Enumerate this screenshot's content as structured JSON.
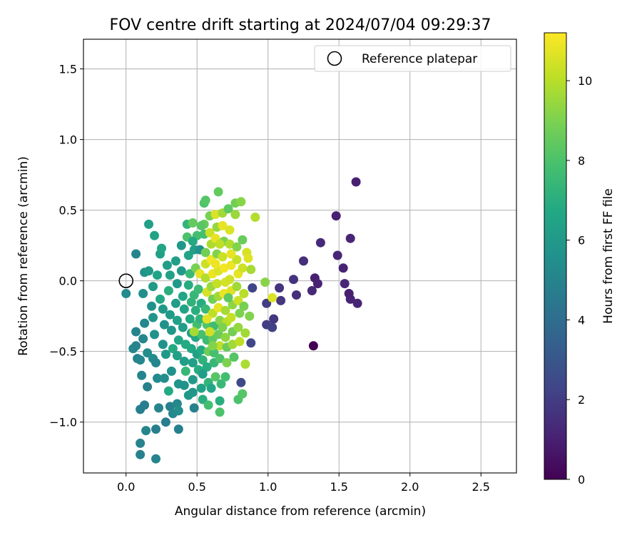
{
  "chart_data": {
    "type": "scatter",
    "title": "FOV centre drift starting at 2024/07/04 09:29:37",
    "xlabel": "Angular distance from reference (arcmin)",
    "ylabel": "Rotation from reference (arcmin)",
    "xlim": [
      -0.3,
      2.75
    ],
    "ylim": [
      -1.36,
      1.71
    ],
    "xticks": [
      0.0,
      0.5,
      1.0,
      1.5,
      2.0,
      2.5
    ],
    "xtick_labels": [
      "0.0",
      "0.5",
      "1.0",
      "1.5",
      "2.0",
      "2.5"
    ],
    "yticks": [
      -1.0,
      -0.5,
      0.0,
      0.5,
      1.0,
      1.5
    ],
    "ytick_labels": [
      "−1.0",
      "−0.5",
      "0.0",
      "0.5",
      "1.0",
      "1.5"
    ],
    "grid": true,
    "legend": {
      "position": "top-right",
      "entries": [
        "Reference platepar"
      ]
    },
    "reference_point": {
      "x": 0.0,
      "y": 0.0
    },
    "colorbar": {
      "label": "Hours from first FF file",
      "colormap": "viridis",
      "min": 0,
      "max": 11.2,
      "ticks": [
        0,
        2,
        4,
        6,
        8,
        10
      ],
      "tick_labels": [
        "0",
        "2",
        "4",
        "6",
        "8",
        "10"
      ]
    },
    "points": [
      {
        "x": 1.62,
        "y": 0.7,
        "t": 1.0
      },
      {
        "x": 1.48,
        "y": 0.46,
        "t": 1.0
      },
      {
        "x": 1.58,
        "y": 0.3,
        "t": 1.2
      },
      {
        "x": 1.37,
        "y": 0.27,
        "t": 1.3
      },
      {
        "x": 1.49,
        "y": 0.18,
        "t": 1.2
      },
      {
        "x": 1.25,
        "y": 0.14,
        "t": 1.5
      },
      {
        "x": 1.53,
        "y": 0.09,
        "t": 1.1
      },
      {
        "x": 1.33,
        "y": 0.02,
        "t": 1.0
      },
      {
        "x": 1.18,
        "y": 0.01,
        "t": 1.6
      },
      {
        "x": 1.35,
        "y": -0.02,
        "t": 1.1
      },
      {
        "x": 1.54,
        "y": -0.02,
        "t": 1.2
      },
      {
        "x": 1.08,
        "y": -0.05,
        "t": 1.7
      },
      {
        "x": 1.31,
        "y": -0.07,
        "t": 1.3
      },
      {
        "x": 1.57,
        "y": -0.09,
        "t": 1.0
      },
      {
        "x": 1.2,
        "y": -0.1,
        "t": 1.5
      },
      {
        "x": 1.58,
        "y": -0.13,
        "t": 1.1
      },
      {
        "x": 1.09,
        "y": -0.14,
        "t": 1.8
      },
      {
        "x": 1.63,
        "y": -0.16,
        "t": 1.2
      },
      {
        "x": 0.99,
        "y": -0.16,
        "t": 2.0
      },
      {
        "x": 1.04,
        "y": -0.27,
        "t": 1.8
      },
      {
        "x": 0.99,
        "y": -0.31,
        "t": 2.0
      },
      {
        "x": 1.03,
        "y": -0.33,
        "t": 2.1
      },
      {
        "x": 0.89,
        "y": -0.05,
        "t": 2.3
      },
      {
        "x": 0.88,
        "y": -0.44,
        "t": 2.4
      },
      {
        "x": 0.81,
        "y": -0.72,
        "t": 2.5
      },
      {
        "x": 1.32,
        "y": -0.46,
        "t": 0.0
      },
      {
        "x": 1.03,
        "y": -0.12,
        "t": 10.6
      },
      {
        "x": 0.07,
        "y": 0.19,
        "t": 5.0
      },
      {
        "x": 0.0,
        "y": -0.09,
        "t": 5.3
      },
      {
        "x": 0.05,
        "y": -0.48,
        "t": 5.2
      },
      {
        "x": 0.07,
        "y": -0.36,
        "t": 5.0
      },
      {
        "x": 0.07,
        "y": -0.46,
        "t": 5.0
      },
      {
        "x": 0.08,
        "y": -0.55,
        "t": 4.9
      },
      {
        "x": 0.1,
        "y": -0.56,
        "t": 5.1
      },
      {
        "x": 0.11,
        "y": -0.67,
        "t": 5.0
      },
      {
        "x": 0.1,
        "y": -0.91,
        "t": 4.8
      },
      {
        "x": 0.13,
        "y": -0.88,
        "t": 4.7
      },
      {
        "x": 0.1,
        "y": -1.15,
        "t": 5.0
      },
      {
        "x": 0.1,
        "y": -1.23,
        "t": 4.9
      },
      {
        "x": 0.14,
        "y": -1.06,
        "t": 5.0
      },
      {
        "x": 0.21,
        "y": -1.05,
        "t": 4.8
      },
      {
        "x": 0.21,
        "y": -1.26,
        "t": 5.0
      },
      {
        "x": 0.28,
        "y": -1.0,
        "t": 4.7
      },
      {
        "x": 0.37,
        "y": -1.05,
        "t": 4.8
      },
      {
        "x": 0.16,
        "y": 0.4,
        "t": 6.3
      },
      {
        "x": 0.2,
        "y": 0.32,
        "t": 6.5
      },
      {
        "x": 0.12,
        "y": -0.09,
        "t": 5.5
      },
      {
        "x": 0.13,
        "y": -0.3,
        "t": 5.2
      },
      {
        "x": 0.12,
        "y": -0.41,
        "t": 5.1
      },
      {
        "x": 0.15,
        "y": -0.51,
        "t": 5.4
      },
      {
        "x": 0.15,
        "y": -0.75,
        "t": 4.9
      },
      {
        "x": 0.13,
        "y": 0.06,
        "t": 5.7
      },
      {
        "x": 0.16,
        "y": 0.07,
        "t": 6.0
      },
      {
        "x": 0.19,
        "y": -0.04,
        "t": 6.1
      },
      {
        "x": 0.18,
        "y": -0.18,
        "t": 5.6
      },
      {
        "x": 0.19,
        "y": -0.26,
        "t": 5.8
      },
      {
        "x": 0.2,
        "y": -0.38,
        "t": 5.6
      },
      {
        "x": 0.19,
        "y": -0.55,
        "t": 5.3
      },
      {
        "x": 0.21,
        "y": -0.58,
        "t": 5.1
      },
      {
        "x": 0.22,
        "y": -0.69,
        "t": 5.3
      },
      {
        "x": 0.23,
        "y": -0.9,
        "t": 5.0
      },
      {
        "x": 0.24,
        "y": 0.19,
        "t": 6.3
      },
      {
        "x": 0.25,
        "y": 0.23,
        "t": 6.6
      },
      {
        "x": 0.22,
        "y": 0.04,
        "t": 6.5
      },
      {
        "x": 0.24,
        "y": -0.13,
        "t": 6.7
      },
      {
        "x": 0.26,
        "y": -0.2,
        "t": 6.0
      },
      {
        "x": 0.27,
        "y": -0.31,
        "t": 5.7
      },
      {
        "x": 0.26,
        "y": -0.45,
        "t": 5.6
      },
      {
        "x": 0.28,
        "y": -0.52,
        "t": 6.0
      },
      {
        "x": 0.27,
        "y": -0.69,
        "t": 5.5
      },
      {
        "x": 0.3,
        "y": -0.78,
        "t": 6.8
      },
      {
        "x": 0.31,
        "y": -0.89,
        "t": 4.9
      },
      {
        "x": 0.29,
        "y": 0.11,
        "t": 6.2
      },
      {
        "x": 0.31,
        "y": 0.04,
        "t": 6.4
      },
      {
        "x": 0.3,
        "y": -0.07,
        "t": 7.0
      },
      {
        "x": 0.31,
        "y": -0.24,
        "t": 6.1
      },
      {
        "x": 0.32,
        "y": -0.35,
        "t": 5.9
      },
      {
        "x": 0.33,
        "y": -0.48,
        "t": 6.8
      },
      {
        "x": 0.32,
        "y": -0.64,
        "t": 5.6
      },
      {
        "x": 0.33,
        "y": -0.94,
        "t": 5.2
      },
      {
        "x": 0.35,
        "y": 0.14,
        "t": 6.3
      },
      {
        "x": 0.36,
        "y": -0.02,
        "t": 6.0
      },
      {
        "x": 0.35,
        "y": -0.16,
        "t": 6.2
      },
      {
        "x": 0.36,
        "y": -0.28,
        "t": 6.4
      },
      {
        "x": 0.37,
        "y": -0.42,
        "t": 6.6
      },
      {
        "x": 0.36,
        "y": -0.53,
        "t": 6.3
      },
      {
        "x": 0.37,
        "y": -0.73,
        "t": 5.8
      },
      {
        "x": 0.36,
        "y": -0.87,
        "t": 5.2
      },
      {
        "x": 0.37,
        "y": -0.92,
        "t": 5.5
      },
      {
        "x": 0.39,
        "y": 0.07,
        "t": 6.1
      },
      {
        "x": 0.4,
        "y": -0.11,
        "t": 6.6
      },
      {
        "x": 0.41,
        "y": -0.2,
        "t": 6.5
      },
      {
        "x": 0.4,
        "y": -0.33,
        "t": 6.2
      },
      {
        "x": 0.42,
        "y": -0.45,
        "t": 6.8
      },
      {
        "x": 0.41,
        "y": -0.57,
        "t": 6.2
      },
      {
        "x": 0.42,
        "y": -0.64,
        "t": 7.4
      },
      {
        "x": 0.41,
        "y": -0.74,
        "t": 5.7
      },
      {
        "x": 0.43,
        "y": 0.4,
        "t": 7.3
      },
      {
        "x": 0.43,
        "y": 0.31,
        "t": 8.0
      },
      {
        "x": 0.44,
        "y": 0.18,
        "t": 6.5
      },
      {
        "x": 0.45,
        "y": 0.05,
        "t": 7.5
      },
      {
        "x": 0.44,
        "y": -0.03,
        "t": 6.9
      },
      {
        "x": 0.46,
        "y": -0.15,
        "t": 7.2
      },
      {
        "x": 0.45,
        "y": -0.27,
        "t": 6.8
      },
      {
        "x": 0.46,
        "y": -0.37,
        "t": 6.4
      },
      {
        "x": 0.46,
        "y": -0.48,
        "t": 6.7
      },
      {
        "x": 0.47,
        "y": -0.58,
        "t": 6.3
      },
      {
        "x": 0.47,
        "y": -0.7,
        "t": 6.0
      },
      {
        "x": 0.47,
        "y": -0.79,
        "t": 5.9
      },
      {
        "x": 0.48,
        "y": -0.9,
        "t": 4.9
      },
      {
        "x": 0.47,
        "y": 0.41,
        "t": 8.5
      },
      {
        "x": 0.48,
        "y": 0.22,
        "t": 6.2
      },
      {
        "x": 0.49,
        "y": 0.09,
        "t": 8.9
      },
      {
        "x": 0.48,
        "y": -0.1,
        "t": 7.4
      },
      {
        "x": 0.49,
        "y": -0.21,
        "t": 7.0
      },
      {
        "x": 0.5,
        "y": -0.31,
        "t": 7.8
      },
      {
        "x": 0.49,
        "y": -0.4,
        "t": 6.6
      },
      {
        "x": 0.5,
        "y": -0.52,
        "t": 6.4
      },
      {
        "x": 0.51,
        "y": -0.63,
        "t": 6.9
      },
      {
        "x": 0.52,
        "y": 0.22,
        "t": 5.6
      },
      {
        "x": 0.52,
        "y": 0.05,
        "t": 10.8
      },
      {
        "x": 0.51,
        "y": -0.06,
        "t": 7.6
      },
      {
        "x": 0.53,
        "y": -0.16,
        "t": 6.9
      },
      {
        "x": 0.52,
        "y": -0.27,
        "t": 7.3
      },
      {
        "x": 0.53,
        "y": -0.38,
        "t": 7.9
      },
      {
        "x": 0.53,
        "y": -0.49,
        "t": 6.8
      },
      {
        "x": 0.54,
        "y": -0.56,
        "t": 7.2
      },
      {
        "x": 0.53,
        "y": -0.76,
        "t": 6.5
      },
      {
        "x": 0.54,
        "y": -0.84,
        "t": 7.0
      },
      {
        "x": 0.55,
        "y": 0.55,
        "t": 8.0
      },
      {
        "x": 0.56,
        "y": 0.57,
        "t": 8.2
      },
      {
        "x": 0.55,
        "y": 0.4,
        "t": 8.6
      },
      {
        "x": 0.55,
        "y": 0.33,
        "t": 7.8
      },
      {
        "x": 0.56,
        "y": 0.2,
        "t": 8.8
      },
      {
        "x": 0.56,
        "y": 0.12,
        "t": 10.3
      },
      {
        "x": 0.56,
        "y": 0.02,
        "t": 9.9
      },
      {
        "x": 0.57,
        "y": -0.08,
        "t": 10.5
      },
      {
        "x": 0.56,
        "y": -0.2,
        "t": 7.5
      },
      {
        "x": 0.57,
        "y": -0.31,
        "t": 8.1
      },
      {
        "x": 0.57,
        "y": -0.42,
        "t": 7.6
      },
      {
        "x": 0.58,
        "y": -0.5,
        "t": 8.7
      },
      {
        "x": 0.57,
        "y": -0.61,
        "t": 6.9
      },
      {
        "x": 0.58,
        "y": -0.72,
        "t": 7.3
      },
      {
        "x": 0.58,
        "y": -0.88,
        "t": 7.8
      },
      {
        "x": 0.59,
        "y": 0.46,
        "t": 8.9
      },
      {
        "x": 0.59,
        "y": 0.34,
        "t": 10.3
      },
      {
        "x": 0.6,
        "y": 0.26,
        "t": 9.8
      },
      {
        "x": 0.6,
        "y": 0.15,
        "t": 11.0
      },
      {
        "x": 0.61,
        "y": 0.05,
        "t": 10.9
      },
      {
        "x": 0.6,
        "y": -0.04,
        "t": 9.5
      },
      {
        "x": 0.61,
        "y": -0.13,
        "t": 8.8
      },
      {
        "x": 0.61,
        "y": -0.23,
        "t": 10.1
      },
      {
        "x": 0.62,
        "y": -0.32,
        "t": 7.7
      },
      {
        "x": 0.61,
        "y": -0.41,
        "t": 8.4
      },
      {
        "x": 0.62,
        "y": -0.51,
        "t": 7.9
      },
      {
        "x": 0.62,
        "y": -0.58,
        "t": 7.4
      },
      {
        "x": 0.63,
        "y": -0.68,
        "t": 8.2
      },
      {
        "x": 0.63,
        "y": 0.47,
        "t": 10.6
      },
      {
        "x": 0.64,
        "y": 0.38,
        "t": 9.4
      },
      {
        "x": 0.63,
        "y": 0.3,
        "t": 10.8
      },
      {
        "x": 0.64,
        "y": 0.19,
        "t": 9.1
      },
      {
        "x": 0.65,
        "y": 0.07,
        "t": 10.6
      },
      {
        "x": 0.64,
        "y": -0.02,
        "t": 10.2
      },
      {
        "x": 0.65,
        "y": -0.11,
        "t": 9.6
      },
      {
        "x": 0.65,
        "y": -0.19,
        "t": 10.8
      },
      {
        "x": 0.66,
        "y": -0.28,
        "t": 9.2
      },
      {
        "x": 0.65,
        "y": -0.38,
        "t": 8.6
      },
      {
        "x": 0.66,
        "y": -0.46,
        "t": 10.1
      },
      {
        "x": 0.66,
        "y": -0.55,
        "t": 8.0
      },
      {
        "x": 0.67,
        "y": -0.73,
        "t": 7.5
      },
      {
        "x": 0.66,
        "y": -0.85,
        "t": 7.0
      },
      {
        "x": 0.66,
        "y": -0.93,
        "t": 8.0
      },
      {
        "x": 0.65,
        "y": 0.63,
        "t": 8.5
      },
      {
        "x": 0.68,
        "y": 0.48,
        "t": 9.6
      },
      {
        "x": 0.68,
        "y": 0.39,
        "t": 10.8
      },
      {
        "x": 0.69,
        "y": 0.28,
        "t": 9.0
      },
      {
        "x": 0.68,
        "y": 0.17,
        "t": 10.3
      },
      {
        "x": 0.69,
        "y": 0.09,
        "t": 11.0
      },
      {
        "x": 0.7,
        "y": -0.01,
        "t": 10.5
      },
      {
        "x": 0.69,
        "y": -0.09,
        "t": 10.9
      },
      {
        "x": 0.7,
        "y": -0.21,
        "t": 9.7
      },
      {
        "x": 0.71,
        "y": -0.29,
        "t": 10.0
      },
      {
        "x": 0.7,
        "y": -0.4,
        "t": 9.3
      },
      {
        "x": 0.71,
        "y": -0.47,
        "t": 8.6
      },
      {
        "x": 0.71,
        "y": -0.58,
        "t": 9.0
      },
      {
        "x": 0.7,
        "y": -0.68,
        "t": 7.8
      },
      {
        "x": 0.72,
        "y": 0.51,
        "t": 8.4
      },
      {
        "x": 0.73,
        "y": 0.36,
        "t": 10.6
      },
      {
        "x": 0.73,
        "y": 0.26,
        "t": 9.9
      },
      {
        "x": 0.74,
        "y": 0.11,
        "t": 10.9
      },
      {
        "x": 0.73,
        "y": 0.01,
        "t": 10.4
      },
      {
        "x": 0.74,
        "y": -0.07,
        "t": 10.7
      },
      {
        "x": 0.75,
        "y": -0.17,
        "t": 9.3
      },
      {
        "x": 0.74,
        "y": -0.26,
        "t": 10.2
      },
      {
        "x": 0.75,
        "y": -0.36,
        "t": 8.8
      },
      {
        "x": 0.75,
        "y": -0.45,
        "t": 9.6
      },
      {
        "x": 0.76,
        "y": -0.54,
        "t": 8.2
      },
      {
        "x": 0.77,
        "y": 0.55,
        "t": 8.8
      },
      {
        "x": 0.77,
        "y": 0.47,
        "t": 9.5
      },
      {
        "x": 0.78,
        "y": 0.24,
        "t": 9.1
      },
      {
        "x": 0.78,
        "y": 0.15,
        "t": 10.2
      },
      {
        "x": 0.79,
        "y": 0.05,
        "t": 10.8
      },
      {
        "x": 0.78,
        "y": -0.04,
        "t": 9.6
      },
      {
        "x": 0.79,
        "y": -0.14,
        "t": 10.3
      },
      {
        "x": 0.8,
        "y": -0.23,
        "t": 9.0
      },
      {
        "x": 0.79,
        "y": -0.33,
        "t": 9.4
      },
      {
        "x": 0.8,
        "y": -0.43,
        "t": 10.1
      },
      {
        "x": 0.79,
        "y": -0.84,
        "t": 8.0
      },
      {
        "x": 0.82,
        "y": -0.8,
        "t": 8.2
      },
      {
        "x": 0.81,
        "y": 0.56,
        "t": 9.2
      },
      {
        "x": 0.82,
        "y": 0.29,
        "t": 8.6
      },
      {
        "x": 0.82,
        "y": 0.09,
        "t": 10.4
      },
      {
        "x": 0.83,
        "y": -0.09,
        "t": 10.0
      },
      {
        "x": 0.83,
        "y": -0.18,
        "t": 8.9
      },
      {
        "x": 0.84,
        "y": -0.37,
        "t": 9.6
      },
      {
        "x": 0.84,
        "y": -0.59,
        "t": 9.8
      },
      {
        "x": 0.85,
        "y": 0.2,
        "t": 10.5
      },
      {
        "x": 0.86,
        "y": 0.16,
        "t": 10.7
      },
      {
        "x": 0.87,
        "y": -0.25,
        "t": 9.1
      },
      {
        "x": 0.88,
        "y": 0.08,
        "t": 9.7
      },
      {
        "x": 0.91,
        "y": 0.45,
        "t": 9.9
      },
      {
        "x": 0.98,
        "y": -0.01,
        "t": 9.2
      },
      {
        "x": 0.5,
        "y": 0.32,
        "t": 7.8
      },
      {
        "x": 0.53,
        "y": 0.39,
        "t": 8.3
      },
      {
        "x": 0.47,
        "y": 0.28,
        "t": 6.8
      },
      {
        "x": 0.44,
        "y": -0.81,
        "t": 6.0
      },
      {
        "x": 0.39,
        "y": 0.25,
        "t": 5.9
      },
      {
        "x": 0.54,
        "y": -0.66,
        "t": 6.2
      },
      {
        "x": 0.6,
        "y": -0.76,
        "t": 6.6
      },
      {
        "x": 0.48,
        "y": -0.36,
        "t": 9.7
      },
      {
        "x": 0.59,
        "y": -0.36,
        "t": 10.4
      },
      {
        "x": 0.66,
        "y": 0.26,
        "t": 10.1
      },
      {
        "x": 0.72,
        "y": -0.12,
        "t": 8.4
      },
      {
        "x": 0.61,
        "y": -0.46,
        "t": 9.1
      },
      {
        "x": 0.63,
        "y": 0.12,
        "t": 10.9
      },
      {
        "x": 0.57,
        "y": -0.27,
        "t": 10.7
      },
      {
        "x": 0.68,
        "y": -0.33,
        "t": 9.0
      },
      {
        "x": 0.74,
        "y": 0.19,
        "t": 10.8
      }
    ]
  }
}
